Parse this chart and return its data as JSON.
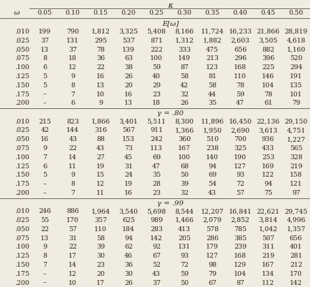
{
  "title_top": "κ",
  "col_headers": [
    "0.05",
    "0.10",
    "0.15",
    "0.20",
    "0.25",
    "0.30",
    "0.35",
    "0.40",
    "0.45",
    "0.50"
  ],
  "row_header_label": "ω",
  "row_labels": [
    ".010",
    ".025",
    ".050",
    ".075",
    ".100",
    ".125",
    ".150",
    ".175",
    ".200"
  ],
  "section_labels": [
    "E[ω]",
    "γ = .80",
    "γ = .99"
  ],
  "data_ew": [
    [
      "199",
      "790",
      "1,812",
      "3,325",
      "5,408",
      "8,166",
      "11,724",
      "16,233",
      "21,866",
      "28,819"
    ],
    [
      "37",
      "131",
      "295",
      "537",
      "871",
      "1,312",
      "1,882",
      "2,603",
      "3,505",
      "4,618"
    ],
    [
      "13",
      "37",
      "78",
      "139",
      "222",
      "333",
      "475",
      "656",
      "882",
      "1,160"
    ],
    [
      "8",
      "18",
      "36",
      "63",
      "100",
      "149",
      "213",
      "296",
      "396",
      "520"
    ],
    [
      "6",
      "12",
      "22",
      "38",
      "59",
      "87",
      "123",
      "168",
      "225",
      "294"
    ],
    [
      "5",
      "9",
      "16",
      "26",
      "40",
      "58",
      "81",
      "110",
      "146",
      "191"
    ],
    [
      "5",
      "8",
      "13",
      "20",
      "29",
      "42",
      "58",
      "78",
      "104",
      "135"
    ],
    [
      "–",
      "7",
      "10",
      "16",
      "23",
      "32",
      "44",
      "59",
      "78",
      "101"
    ],
    [
      "–",
      "6",
      "9",
      "13",
      "18",
      "26",
      "35",
      "47",
      "61",
      "79"
    ]
  ],
  "data_80": [
    [
      "215",
      "823",
      "1,866",
      "3,401",
      "5,511",
      "8,300",
      "11,896",
      "16,450",
      "22,136",
      "29,150"
    ],
    [
      "42",
      "144",
      "316",
      "567",
      "911",
      "1,366",
      "1,950",
      "2,690",
      "3,613",
      "4,751"
    ],
    [
      "16",
      "43",
      "88",
      "153",
      "242",
      "360",
      "510",
      "700",
      "936",
      "1,227"
    ],
    [
      "9",
      "22",
      "43",
      "73",
      "113",
      "167",
      "238",
      "325",
      "433",
      "565"
    ],
    [
      "7",
      "14",
      "27",
      "45",
      "69",
      "100",
      "140",
      "190",
      "253",
      "328"
    ],
    [
      "6",
      "11",
      "19",
      "31",
      "47",
      "68",
      "94",
      "127",
      "169",
      "219"
    ],
    [
      "5",
      "9",
      "15",
      "24",
      "35",
      "50",
      "69",
      "93",
      "122",
      "158"
    ],
    [
      "–",
      "8",
      "12",
      "19",
      "28",
      "39",
      "54",
      "72",
      "94",
      "121"
    ],
    [
      "–",
      "7",
      "11",
      "16",
      "23",
      "32",
      "43",
      "57",
      "75",
      "97"
    ]
  ],
  "data_99": [
    [
      "246",
      "886",
      "1,964",
      "3,540",
      "5,698",
      "8,544",
      "12,207",
      "16,841",
      "22,621",
      "29,745"
    ],
    [
      "55",
      "170",
      "357",
      "625",
      "989",
      "1,466",
      "2,079",
      "2,852",
      "3,814",
      "4,996"
    ],
    [
      "22",
      "57",
      "110",
      "184",
      "283",
      "413",
      "578",
      "785",
      "1,042",
      "1,357"
    ],
    [
      "13",
      "31",
      "58",
      "94",
      "142",
      "205",
      "286",
      "385",
      "507",
      "656"
    ],
    [
      "9",
      "22",
      "39",
      "62",
      "92",
      "131",
      "179",
      "239",
      "311",
      "401"
    ],
    [
      "8",
      "17",
      "30",
      "46",
      "67",
      "93",
      "127",
      "168",
      "219",
      "281"
    ],
    [
      "7",
      "14",
      "23",
      "36",
      "52",
      "72",
      "98",
      "129",
      "167",
      "212"
    ],
    [
      "–",
      "12",
      "20",
      "30",
      "43",
      "59",
      "79",
      "104",
      "134",
      "170"
    ],
    [
      "–",
      "10",
      "17",
      "26",
      "37",
      "50",
      "67",
      "87",
      "112",
      "142"
    ]
  ],
  "bg_color": "#f0ece2",
  "text_color": "#2a2010",
  "line_color": "#555040",
  "font_size": 6.8,
  "header_font_size": 7.5,
  "section_font_size": 7.5
}
